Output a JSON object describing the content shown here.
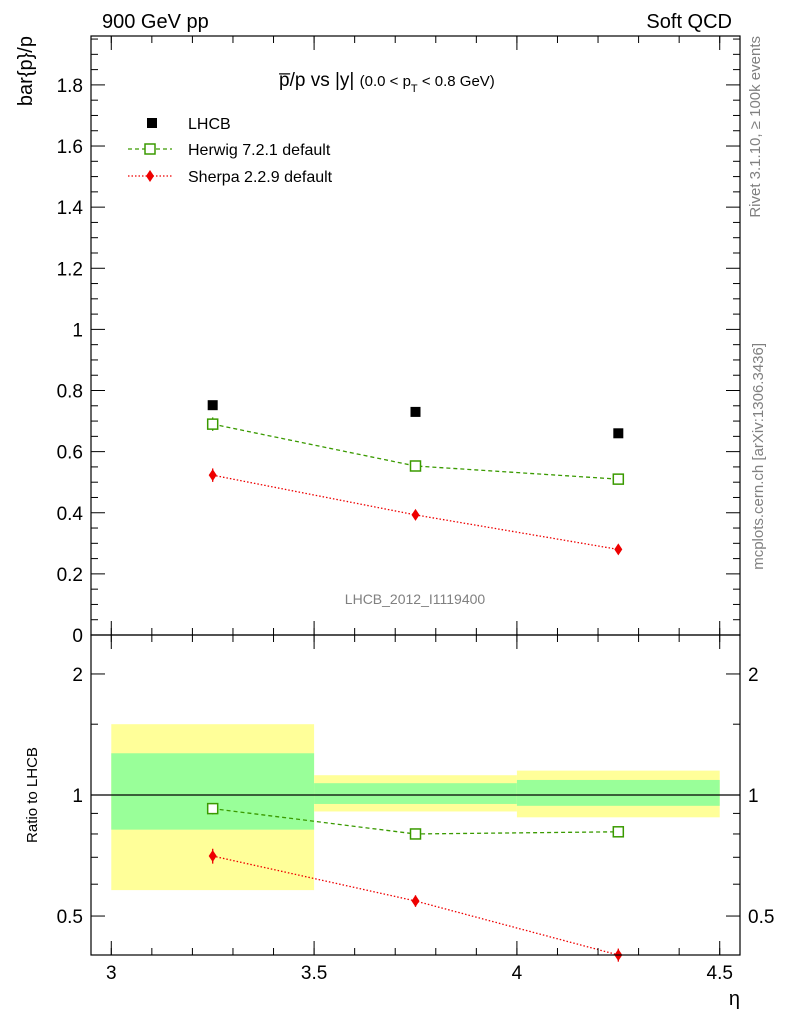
{
  "header": {
    "left": "900 GeV pp",
    "right": "Soft QCD"
  },
  "side_labels": {
    "rivet": "Rivet 3.1.10, ≥ 100k events",
    "mcplots": "mcplots.cern.ch [arXiv:1306.3436]"
  },
  "chart_data": [
    {
      "type": "scatter",
      "name": "main",
      "title_main": "p̅/p vs |y|",
      "title_sub_pre": "(0.0 < p",
      "title_sub_sub": "T",
      "title_sub_post": " < 0.8 GeV)",
      "ylabel": "bar{p}/p",
      "xlabel": "",
      "xlim": [
        2.95,
        4.55
      ],
      "ylim": [
        0,
        1.96
      ],
      "y_ticks": [
        0,
        0.2,
        0.4,
        0.6,
        0.8,
        1,
        1.2,
        1.4,
        1.6,
        1.8
      ],
      "y_tick_labels": [
        "0",
        "0.2",
        "0.4",
        "0.6",
        "0.8",
        "1",
        "1.2",
        "1.4",
        "1.6",
        "1.8"
      ],
      "watermark": "LHCB_2012_I1119400",
      "x": [
        3.25,
        3.75,
        4.25
      ],
      "series": [
        {
          "name": "LHCB",
          "marker": "square-filled",
          "color": "#000000",
          "line": "none",
          "values": [
            0.752,
            0.73,
            0.66
          ],
          "errors": [
            0.0,
            0.0,
            0.0
          ]
        },
        {
          "name": "Herwig 7.2.1 default",
          "marker": "square-open",
          "color": "#3a9a00",
          "line": "dashed",
          "values": [
            0.69,
            0.553,
            0.51
          ],
          "errors": [
            0.022,
            0.01,
            0.01
          ]
        },
        {
          "name": "Sherpa 2.2.9 default",
          "marker": "diamond",
          "color": "#ee0000",
          "line": "dotted",
          "values": [
            0.523,
            0.393,
            0.28
          ],
          "errors": [
            0.022,
            0.01,
            0.008
          ]
        }
      ]
    },
    {
      "type": "scatter",
      "name": "ratio",
      "ylabel": "Ratio to LHCB",
      "xlabel": "η",
      "xlim": [
        2.95,
        4.55
      ],
      "ylim": [
        0.4,
        2.5
      ],
      "log_y": true,
      "y_ticks": [
        0.5,
        1,
        2
      ],
      "y_tick_labels": [
        "0.5",
        "1",
        "2"
      ],
      "x_ticks": [
        3,
        3.5,
        4,
        4.5
      ],
      "x_tick_labels": [
        "3",
        "3.5",
        "4",
        "4.5"
      ],
      "bands": [
        {
          "x0": 3.0,
          "x1": 3.5,
          "outer": [
            0.58,
            1.5
          ],
          "inner": [
            0.82,
            1.27
          ]
        },
        {
          "x0": 3.5,
          "x1": 4.0,
          "outer": [
            0.91,
            1.12
          ],
          "inner": [
            0.95,
            1.07
          ]
        },
        {
          "x0": 4.0,
          "x1": 4.5,
          "outer": [
            0.88,
            1.15
          ],
          "inner": [
            0.94,
            1.09
          ]
        }
      ],
      "x": [
        3.25,
        3.75,
        4.25
      ],
      "series": [
        {
          "name": "Herwig 7.2.1 default",
          "marker": "square-open",
          "color": "#3a9a00",
          "line": "dashed",
          "values": [
            0.925,
            0.8,
            0.81
          ],
          "errors": [
            0.03,
            0.015,
            0.012
          ]
        },
        {
          "name": "Sherpa 2.2.9 default",
          "marker": "diamond",
          "color": "#ee0000",
          "line": "dotted",
          "values": [
            0.705,
            0.545,
            0.4
          ],
          "errors": [
            0.03,
            0.018,
            0.015
          ]
        }
      ]
    }
  ],
  "colors": {
    "band_outer": "#ffff99",
    "band_inner": "#99ff99"
  }
}
